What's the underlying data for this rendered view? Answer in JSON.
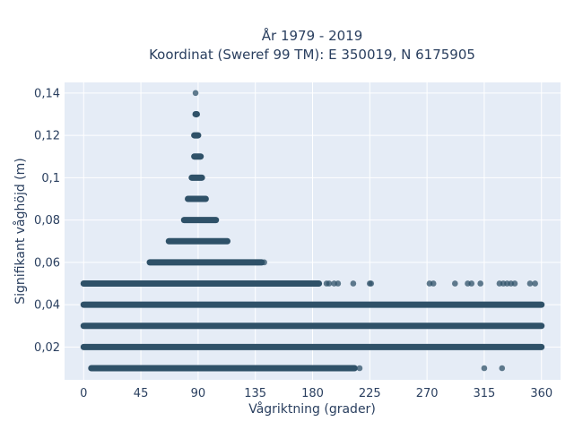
{
  "chart_data": {
    "type": "scatter",
    "title_line1": "År 1979 - 2019",
    "title_line2": "Koordinat (Sweref 99 TM): E 350019, N 6175905",
    "xlabel": "Vågriktning (grader)",
    "ylabel": "Signifikant våghöjd (m)",
    "xlim": [
      -15,
      375
    ],
    "ylim": [
      0.0045,
      0.145
    ],
    "x_ticks": [
      0,
      45,
      90,
      135,
      180,
      225,
      270,
      315,
      360
    ],
    "x_tick_labels": [
      "0",
      "45",
      "90",
      "135",
      "180",
      "225",
      "270",
      "315",
      "360"
    ],
    "y_ticks": [
      0.02,
      0.04,
      0.06,
      0.08,
      0.1,
      0.12,
      0.14
    ],
    "y_tick_labels": [
      "0,02",
      "0,04",
      "0,06",
      "0,08",
      "0,1",
      "0,12",
      "0,14"
    ],
    "grid": true,
    "colors": {
      "marker": "#2f5168",
      "grid": "#ffffff",
      "plot_bg": "#e5ecf6",
      "text": "#2a3f5f"
    },
    "series": [
      {
        "bands": [
          {
            "y": 0.14,
            "x_from": 88,
            "x_to": 88
          },
          {
            "y": 0.13,
            "x_from": 88,
            "x_to": 89
          },
          {
            "y": 0.12,
            "x_from": 87,
            "x_to": 90
          },
          {
            "y": 0.11,
            "x_from": 87,
            "x_to": 92
          },
          {
            "y": 0.1,
            "x_from": 85,
            "x_to": 93
          },
          {
            "y": 0.09,
            "x_from": 82,
            "x_to": 96
          },
          {
            "y": 0.08,
            "x_from": 79,
            "x_to": 104
          },
          {
            "y": 0.07,
            "x_from": 67,
            "x_to": 113
          },
          {
            "y": 0.06,
            "x_from": 52,
            "x_to": 140
          },
          {
            "y": 0.05,
            "x_from": 0,
            "x_to": 185
          },
          {
            "y": 0.04,
            "x_from": 0,
            "x_to": 360
          },
          {
            "y": 0.03,
            "x_from": 0,
            "x_to": 360
          },
          {
            "y": 0.02,
            "x_from": 0,
            "x_to": 360
          },
          {
            "y": 0.01,
            "x_from": 6,
            "x_to": 213
          }
        ],
        "points": [
          {
            "x": 137,
            "y": 0.06
          },
          {
            "x": 142,
            "y": 0.06
          },
          {
            "x": 191,
            "y": 0.05
          },
          {
            "x": 193,
            "y": 0.05
          },
          {
            "x": 197,
            "y": 0.05
          },
          {
            "x": 200,
            "y": 0.05
          },
          {
            "x": 212,
            "y": 0.05
          },
          {
            "x": 225,
            "y": 0.05
          },
          {
            "x": 226,
            "y": 0.05
          },
          {
            "x": 272,
            "y": 0.05
          },
          {
            "x": 275,
            "y": 0.05
          },
          {
            "x": 292,
            "y": 0.05
          },
          {
            "x": 302,
            "y": 0.05
          },
          {
            "x": 305,
            "y": 0.05
          },
          {
            "x": 312,
            "y": 0.05
          },
          {
            "x": 327,
            "y": 0.05
          },
          {
            "x": 330,
            "y": 0.05
          },
          {
            "x": 333,
            "y": 0.05
          },
          {
            "x": 336,
            "y": 0.05
          },
          {
            "x": 339,
            "y": 0.05
          },
          {
            "x": 351,
            "y": 0.05
          },
          {
            "x": 355,
            "y": 0.05
          },
          {
            "x": 217,
            "y": 0.01
          },
          {
            "x": 315,
            "y": 0.01
          },
          {
            "x": 329,
            "y": 0.01
          }
        ]
      }
    ]
  }
}
